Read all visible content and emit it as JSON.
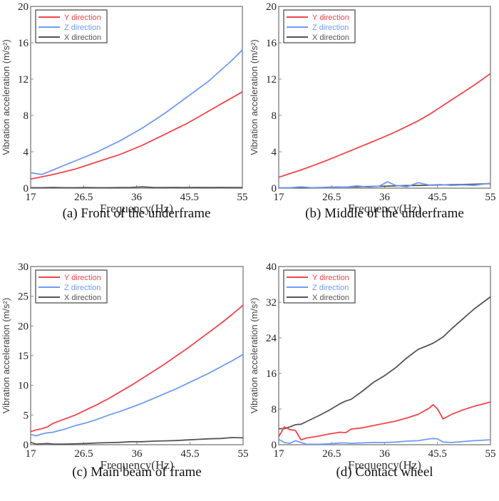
{
  "colors": {
    "Y direction": "#f0444a",
    "Z direction": "#6f9bf5",
    "X direction": "#555555"
  },
  "chart_data": [
    {
      "type": "line",
      "panel": "a",
      "caption": "(a) Front of the underframe",
      "xlabel": "Frequency(Hz)",
      "ylabel": "Vibration acceleration (m/s²)",
      "xlim": [
        17,
        55
      ],
      "ylim": [
        0,
        20
      ],
      "xticks": [
        "17",
        "26.5",
        "36",
        "45.5",
        "55"
      ],
      "yticks": [
        "0",
        "4",
        "8",
        "12",
        "16",
        "20"
      ],
      "legend": [
        "Y direction",
        "Z direction",
        "X direction"
      ],
      "legend_position": "top-left",
      "x": [
        17,
        19,
        21,
        23,
        25,
        27,
        29,
        31,
        33,
        35,
        37,
        39,
        41,
        43,
        45,
        47,
        49,
        51,
        53,
        55
      ],
      "series": [
        {
          "name": "Y direction",
          "values": [
            1.0,
            1.25,
            1.5,
            1.8,
            2.1,
            2.5,
            2.9,
            3.3,
            3.7,
            4.2,
            4.7,
            5.3,
            5.9,
            6.5,
            7.1,
            7.8,
            8.5,
            9.2,
            9.9,
            10.6
          ]
        },
        {
          "name": "Z direction",
          "values": [
            1.7,
            1.5,
            2.0,
            2.5,
            3.0,
            3.5,
            4.0,
            4.6,
            5.2,
            5.9,
            6.6,
            7.4,
            8.2,
            9.1,
            10.0,
            10.9,
            11.8,
            12.9,
            14.0,
            15.2
          ]
        },
        {
          "name": "X direction",
          "values": [
            0.05,
            0.05,
            0.08,
            0.05,
            0.05,
            0.06,
            0.05,
            0.05,
            0.06,
            0.08,
            0.15,
            0.08,
            0.06,
            0.08,
            0.06,
            0.08,
            0.06,
            0.08,
            0.06,
            0.06
          ]
        }
      ]
    },
    {
      "type": "line",
      "panel": "b",
      "caption": "(b) Middle of the underframe",
      "xlabel": "Frequency(Hz)",
      "ylabel": "Vibration acceleration (m/s²)",
      "xlim": [
        17,
        55
      ],
      "ylim": [
        0,
        20
      ],
      "xticks": [
        "17",
        "26.5",
        "36",
        "45.5",
        "55"
      ],
      "yticks": [
        "0",
        "4",
        "8",
        "12",
        "16",
        "20"
      ],
      "legend": [
        "Y direction",
        "Z direction",
        "X direction"
      ],
      "legend_position": "top-left",
      "x": [
        17,
        19,
        21,
        23,
        25,
        27,
        29,
        31,
        33,
        35,
        36.5,
        38,
        40,
        42,
        44,
        46,
        48,
        50,
        52,
        55
      ],
      "series": [
        {
          "name": "Y direction",
          "values": [
            1.2,
            1.6,
            2.0,
            2.45,
            2.9,
            3.4,
            3.9,
            4.4,
            4.9,
            5.4,
            5.8,
            6.2,
            6.8,
            7.4,
            8.1,
            8.9,
            9.7,
            10.5,
            11.3,
            12.6
          ]
        },
        {
          "name": "Z direction",
          "values": [
            0.05,
            0.05,
            0.15,
            0.05,
            0.05,
            0.05,
            0.1,
            0.25,
            0.1,
            0.2,
            0.7,
            0.3,
            0.15,
            0.6,
            0.35,
            0.4,
            0.3,
            0.35,
            0.3,
            0.55
          ]
        },
        {
          "name": "X direction",
          "values": [
            0.05,
            0.05,
            0.05,
            0.05,
            0.08,
            0.1,
            0.12,
            0.15,
            0.17,
            0.2,
            0.22,
            0.25,
            0.28,
            0.3,
            0.32,
            0.35,
            0.38,
            0.4,
            0.43,
            0.5
          ]
        }
      ]
    },
    {
      "type": "line",
      "panel": "c",
      "caption": "(c) Main beam of frame",
      "xlabel": "Frequency(Hz)",
      "ylabel": "Vibration acceleration (m/s²)",
      "xlim": [
        17,
        55
      ],
      "ylim": [
        0,
        30
      ],
      "xticks": [
        "17",
        "26.5",
        "36",
        "45.5",
        "55"
      ],
      "yticks": [
        "0",
        "5",
        "10",
        "15",
        "20",
        "25",
        "30"
      ],
      "legend": [
        "Y direction",
        "Z direction",
        "X direction"
      ],
      "legend_position": "top-left",
      "x": [
        17,
        18,
        19,
        20,
        21,
        23,
        25,
        27,
        29,
        31,
        33,
        35,
        37,
        39,
        41,
        43,
        45,
        47,
        49,
        51,
        53,
        55
      ],
      "series": [
        {
          "name": "Y direction",
          "values": [
            2.2,
            2.5,
            2.7,
            3.0,
            3.6,
            4.3,
            5.0,
            5.9,
            6.8,
            7.8,
            8.9,
            10.0,
            11.2,
            12.4,
            13.6,
            14.9,
            16.2,
            17.6,
            19.0,
            20.4,
            21.9,
            23.5
          ]
        },
        {
          "name": "Z direction",
          "values": [
            1.7,
            1.5,
            1.8,
            2.0,
            2.1,
            2.6,
            3.2,
            3.7,
            4.3,
            5.0,
            5.6,
            6.3,
            7.0,
            7.8,
            8.6,
            9.4,
            10.3,
            11.2,
            12.1,
            13.1,
            14.1,
            15.2
          ]
        },
        {
          "name": "X direction",
          "values": [
            0.4,
            0.1,
            0.15,
            0.2,
            0.1,
            0.1,
            0.15,
            0.2,
            0.3,
            0.35,
            0.4,
            0.5,
            0.5,
            0.6,
            0.65,
            0.7,
            0.8,
            0.9,
            1.0,
            1.05,
            1.2,
            1.15
          ]
        }
      ]
    },
    {
      "type": "line",
      "panel": "d",
      "caption": "(d) Contact wheel",
      "xlabel": "Frequency(Hz)",
      "ylabel": "Vibration acceleration (m/s²)",
      "xlim": [
        17,
        55
      ],
      "ylim": [
        0,
        40
      ],
      "xticks": [
        "17",
        "26.5",
        "36",
        "45.5",
        "55"
      ],
      "yticks": [
        "0",
        "8",
        "16",
        "24",
        "32",
        "40"
      ],
      "legend": [
        "Y direction",
        "Z direction",
        "X direction"
      ],
      "legend_position": "top-left",
      "x": [
        17,
        18,
        19,
        20,
        21,
        22,
        24,
        26,
        28,
        29,
        30,
        32,
        34,
        36,
        38,
        40,
        42,
        44,
        44.7,
        45.5,
        46.5,
        48,
        50,
        52,
        55
      ],
      "series": [
        {
          "name": "Y direction",
          "values": [
            1.8,
            4.0,
            3.4,
            3.2,
            1.1,
            1.5,
            1.9,
            2.4,
            2.8,
            2.7,
            3.5,
            3.8,
            4.3,
            4.8,
            5.3,
            6.0,
            6.8,
            8.2,
            9.0,
            8.0,
            5.8,
            6.8,
            7.8,
            8.6,
            9.6
          ]
        },
        {
          "name": "Z direction",
          "values": [
            1.2,
            0.5,
            0.3,
            0.9,
            0.5,
            0.1,
            0.1,
            0.2,
            0.4,
            0.4,
            0.3,
            0.4,
            0.5,
            0.5,
            0.6,
            0.8,
            0.9,
            1.3,
            1.4,
            1.3,
            0.6,
            0.5,
            0.7,
            0.9,
            1.1
          ]
        },
        {
          "name": "X direction",
          "values": [
            3.6,
            3.6,
            4.0,
            4.5,
            4.6,
            5.2,
            6.4,
            7.7,
            9.2,
            9.8,
            10.2,
            12.0,
            14.0,
            15.5,
            17.3,
            19.5,
            21.4,
            22.4,
            22.8,
            23.4,
            24.2,
            26.0,
            28.2,
            30.4,
            33.2
          ]
        }
      ]
    }
  ]
}
